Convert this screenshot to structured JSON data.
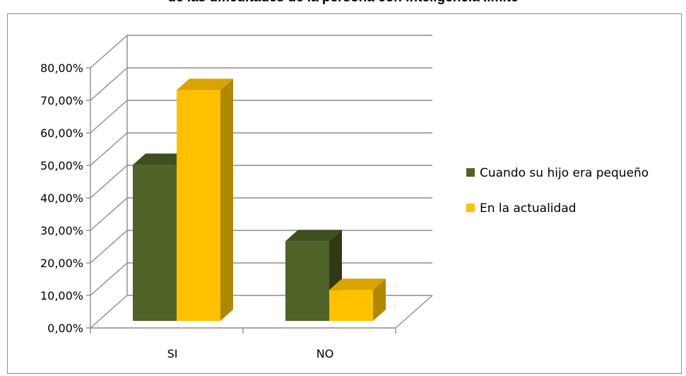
{
  "chart_data": {
    "type": "bar",
    "title": "de las dificultades de la persona con inteligencia límite",
    "categories": [
      "SI",
      "NO"
    ],
    "series": [
      {
        "name": "Cuando su hijo era pequeño",
        "values": [
          48.0,
          24.5
        ],
        "color": "#4f6228",
        "side_color": "#2e3a17",
        "top_color": "#3f4f1f"
      },
      {
        "name": "En la actualidad",
        "values": [
          71.0,
          9.5
        ],
        "color": "#ffc000",
        "side_color": "#b08800",
        "top_color": "#d9a300"
      }
    ],
    "ylim": [
      0,
      80
    ],
    "yticks": [
      "0,00%",
      "10,00%",
      "20,00%",
      "30,00%",
      "40,00%",
      "50,00%",
      "60,00%",
      "70,00%",
      "80,00%"
    ],
    "grid": true,
    "legend_position": "right",
    "xlabel": "",
    "ylabel": ""
  }
}
